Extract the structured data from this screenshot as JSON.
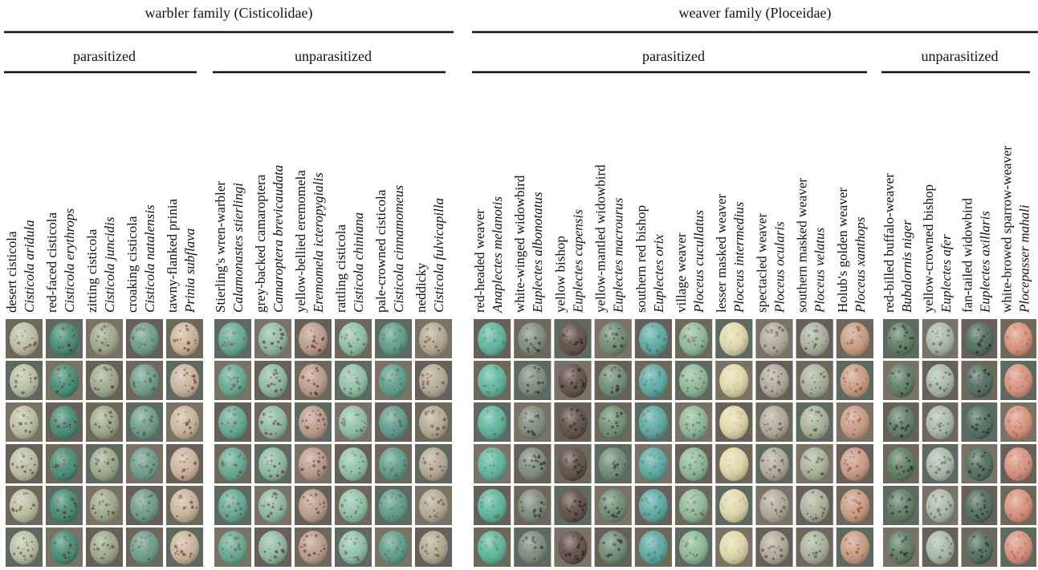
{
  "families": [
    {
      "title": "warbler family (Cisticolidae)",
      "groups": [
        {
          "label": "parasitized",
          "species": [
            {
              "common": "desert cisticola",
              "scientific": "Cisticola aridula"
            },
            {
              "common": "red-faced cisticola",
              "scientific": "Cisticola erythrops"
            },
            {
              "common": "zitting cisticola",
              "scientific": "Cisticola juncidis"
            },
            {
              "common": "croaking cisticola",
              "scientific": "Cisticola natalensis"
            },
            {
              "common": "tawny-flanked prinia",
              "scientific": "Prinia subflava"
            }
          ]
        },
        {
          "label": "unparasitized",
          "species": [
            {
              "common": "Stierling's wren-warbler",
              "scientific": "Calamonastes stierlingi"
            },
            {
              "common": "grey-backed camaroptera",
              "scientific": "Camaroptera brevicaudata"
            },
            {
              "common": "yellow-bellied eremomela",
              "scientific": "Eremomela icteropygialis"
            },
            {
              "common": "rattling cisticola",
              "scientific": "Cisticola chiniana"
            },
            {
              "common": "pale-crowned cisticola",
              "scientific": "Cisticola cinnamomeus"
            },
            {
              "common": "neddicky",
              "scientific": "Cisticola fulvicapilla"
            }
          ]
        }
      ]
    },
    {
      "title": "weaver family (Ploceidae)",
      "groups": [
        {
          "label": "parasitized",
          "species": [
            {
              "common": "red-headed weaver",
              "scientific": "Anaplectes melanotis"
            },
            {
              "common": "white-winged widowbird",
              "scientific": "Euplectes albonotatus"
            },
            {
              "common": "yellow bishop",
              "scientific": "Euplectes capensis"
            },
            {
              "common": "yellow-mantled widowbird",
              "scientific": "Euplectes macrourus"
            },
            {
              "common": "southern red bishop",
              "scientific": "Euplectes orix"
            },
            {
              "common": "village weaver",
              "scientific": "Ploceus cucullatus"
            },
            {
              "common": "lesser masked weaver",
              "scientific": "Ploceus intermedius"
            },
            {
              "common": "spectacled weaver",
              "scientific": "Ploceus ocularis"
            },
            {
              "common": "southern masked weaver",
              "scientific": "Ploceus velatus"
            },
            {
              "common": "Holub's golden weaver",
              "scientific": "Ploceus xanthops"
            }
          ]
        },
        {
          "label": "unparasitized",
          "species": [
            {
              "common": "red-billed buffalo-weaver",
              "scientific": "Bubalornis niger"
            },
            {
              "common": "yellow-crowned bishop",
              "scientific": "Euplectes afer"
            },
            {
              "common": "fan-tailed widowbird",
              "scientific": "Euplectes axillaris"
            },
            {
              "common": "white-browed sparrow-weaver",
              "scientific": "Plocepasser mahali"
            }
          ]
        }
      ]
    }
  ]
}
